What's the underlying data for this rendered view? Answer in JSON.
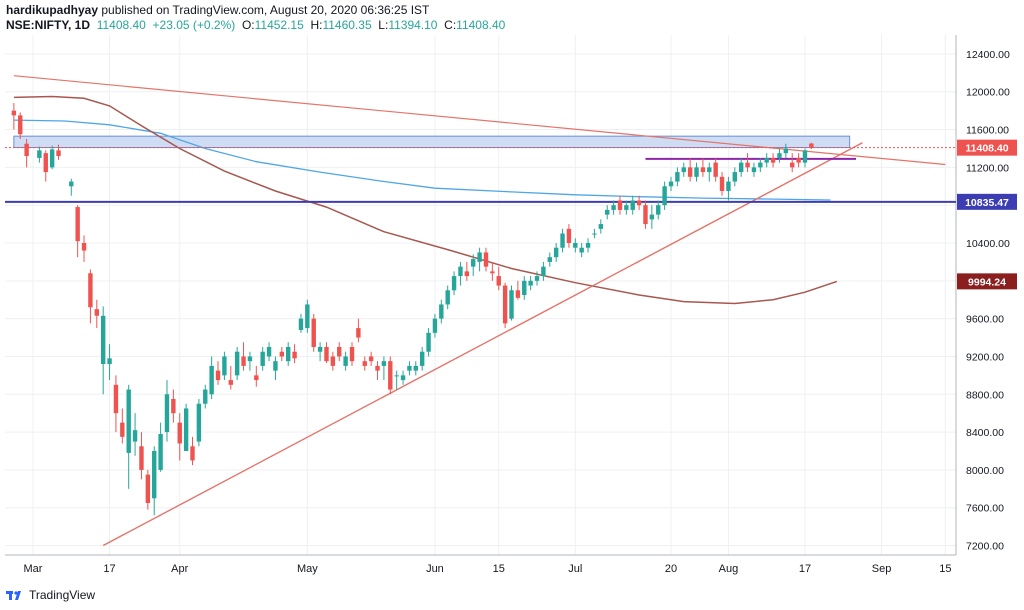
{
  "header": {
    "author": "hardikupadhyay",
    "published_text": "published on TradingView.com, August 20, 2020 06:36:25 IST",
    "symbol": "NSE:NIFTY, 1D",
    "last": "11408.40",
    "change": "+23.05 (+0.2%)",
    "o_label": "O:",
    "o_value": "11452.15",
    "h_label": "H:",
    "h_value": "11460.35",
    "l_label": "L:",
    "l_value": "11394.10",
    "c_label": "C:",
    "c_value": "11408.40"
  },
  "footer": {
    "brand": "TradingView"
  },
  "colors": {
    "up": "#26a69a",
    "down": "#ef5350",
    "grid": "#eef0f3",
    "trendline": "#e57368",
    "support_line": "#3d3db3",
    "resistance_line": "#8e24aa",
    "zone_fill": "#c6d6f2",
    "zone_border": "#6a8fd8",
    "ma_blue": "#4fa6e6",
    "ma_brown": "#a8574e",
    "badge_last": "#ef5350",
    "badge_support": "#3d3db3",
    "badge_ma": "#8b1e1e"
  },
  "chart_data": {
    "type": "candlestick",
    "title": "",
    "ylim": [
      7100,
      12600
    ],
    "y_ticks": [
      "12400.00",
      "12000.00",
      "11600.00",
      "11200.00",
      "10800.00",
      "10400.00",
      "10000.00",
      "9600.00",
      "9200.00",
      "8800.00",
      "8400.00",
      "8000.00",
      "7600.00",
      "7200.00"
    ],
    "y_tick_values": [
      12400,
      12000,
      11600,
      11200,
      10800,
      10400,
      10000,
      9600,
      9200,
      8800,
      8400,
      8000,
      7600,
      7200
    ],
    "x_ticks": [
      {
        "label": "Mar",
        "day": 0
      },
      {
        "label": "17",
        "day": 12
      },
      {
        "label": "Apr",
        "day": 23
      },
      {
        "label": "May",
        "day": 43
      },
      {
        "label": "Jun",
        "day": 63
      },
      {
        "label": "15",
        "day": 73
      },
      {
        "label": "Jul",
        "day": 85
      },
      {
        "label": "20",
        "day": 100
      },
      {
        "label": "Aug",
        "day": 109
      },
      {
        "label": "17",
        "day": 121
      },
      {
        "label": "Sep",
        "day": 133
      },
      {
        "label": "15",
        "day": 143
      }
    ],
    "price_badges": [
      {
        "label": "11408.40",
        "value": 11408.4,
        "color_key": "badge_last"
      },
      {
        "label": "10835.47",
        "value": 10835.47,
        "color_key": "badge_support"
      },
      {
        "label": "9994.24",
        "value": 9994.24,
        "color_key": "badge_ma"
      }
    ],
    "candles": [
      [
        -3,
        11800,
        11880,
        11600,
        11750
      ],
      [
        -2,
        11750,
        11780,
        11500,
        11550
      ],
      [
        -1,
        11450,
        11500,
        11200,
        11320
      ],
      [
        1,
        11300,
        11420,
        11250,
        11380
      ],
      [
        2,
        11350,
        11380,
        11050,
        11150
      ],
      [
        3,
        11200,
        11430,
        11180,
        11390
      ],
      [
        4,
        11380,
        11440,
        11280,
        11320
      ],
      [
        6,
        11000,
        11080,
        10900,
        11050
      ],
      [
        7,
        10780,
        10800,
        10250,
        10420
      ],
      [
        8,
        10400,
        10480,
        10200,
        10320
      ],
      [
        9,
        10080,
        10120,
        9550,
        9720
      ],
      [
        10,
        9700,
        9800,
        9500,
        9630
      ],
      [
        11,
        9120,
        9730,
        8800,
        9630
      ],
      [
        12,
        9120,
        9330,
        8950,
        9180
      ],
      [
        13,
        8900,
        9000,
        8400,
        8600
      ],
      [
        14,
        8500,
        8650,
        8280,
        8350
      ],
      [
        15,
        8180,
        8900,
        7800,
        8850
      ],
      [
        16,
        8300,
        8600,
        8150,
        8420
      ],
      [
        17,
        8250,
        8400,
        7900,
        8000
      ],
      [
        18,
        7950,
        8000,
        7580,
        7650
      ],
      [
        19,
        7700,
        8250,
        7520,
        8200
      ],
      [
        20,
        8000,
        8500,
        7980,
        8380
      ],
      [
        21,
        8400,
        8950,
        8300,
        8800
      ],
      [
        22,
        8750,
        8850,
        8500,
        8600
      ],
      [
        23,
        8500,
        8600,
        8100,
        8280
      ],
      [
        24,
        8200,
        8700,
        8200,
        8650
      ],
      [
        25,
        8250,
        8350,
        8050,
        8100
      ],
      [
        26,
        8300,
        8750,
        8250,
        8700
      ],
      [
        27,
        8700,
        8900,
        8650,
        8850
      ],
      [
        28,
        8800,
        9200,
        8750,
        9100
      ],
      [
        29,
        9050,
        9150,
        8900,
        8950
      ],
      [
        30,
        9000,
        9250,
        8950,
        9200
      ],
      [
        31,
        8950,
        9100,
        8850,
        8900
      ],
      [
        32,
        9000,
        9300,
        8950,
        9250
      ],
      [
        33,
        9200,
        9350,
        9050,
        9100
      ],
      [
        34,
        9150,
        9250,
        9050,
        9200
      ],
      [
        35,
        9000,
        9100,
        8880,
        8950
      ],
      [
        36,
        9100,
        9300,
        9050,
        9250
      ],
      [
        37,
        9200,
        9350,
        9150,
        9300
      ],
      [
        38,
        9050,
        9200,
        8950,
        9150
      ],
      [
        39,
        9250,
        9300,
        9150,
        9200
      ],
      [
        40,
        9150,
        9350,
        9100,
        9300
      ],
      [
        41,
        9250,
        9330,
        9130,
        9180
      ],
      [
        42,
        9480,
        9650,
        9450,
        9600
      ],
      [
        43,
        9500,
        9800,
        9450,
        9750
      ],
      [
        44,
        9600,
        9650,
        9250,
        9300
      ],
      [
        45,
        9250,
        9350,
        9150,
        9300
      ],
      [
        46,
        9300,
        9350,
        9130,
        9150
      ],
      [
        47,
        9200,
        9250,
        9050,
        9100
      ],
      [
        48,
        9300,
        9350,
        9150,
        9200
      ],
      [
        49,
        9100,
        9250,
        9050,
        9200
      ],
      [
        50,
        9300,
        9350,
        9100,
        9150
      ],
      [
        51,
        9500,
        9600,
        9350,
        9400
      ],
      [
        52,
        9150,
        9200,
        9050,
        9100
      ],
      [
        53,
        9200,
        9250,
        9100,
        9150
      ],
      [
        54,
        9100,
        9150,
        8950,
        9050
      ],
      [
        55,
        9100,
        9200,
        8950,
        9150
      ],
      [
        56,
        9150,
        9200,
        8800,
        8850
      ],
      [
        57,
        9000,
        9050,
        8850,
        9000
      ],
      [
        58,
        8950,
        9050,
        8900,
        9000
      ],
      [
        59,
        9050,
        9150,
        9000,
        9100
      ],
      [
        60,
        9050,
        9150,
        9000,
        9100
      ],
      [
        61,
        9100,
        9300,
        9050,
        9250
      ],
      [
        62,
        9250,
        9500,
        9200,
        9450
      ],
      [
        63,
        9450,
        9650,
        9400,
        9600
      ],
      [
        64,
        9600,
        9800,
        9550,
        9750
      ],
      [
        65,
        9750,
        9950,
        9700,
        9900
      ],
      [
        66,
        9900,
        10100,
        9850,
        10050
      ],
      [
        67,
        10050,
        10200,
        9950,
        10150
      ],
      [
        68,
        10100,
        10200,
        10000,
        10050
      ],
      [
        69,
        10150,
        10280,
        10050,
        10230
      ],
      [
        70,
        10200,
        10350,
        10100,
        10300
      ],
      [
        71,
        10300,
        10350,
        10100,
        10150
      ],
      [
        72,
        10100,
        10200,
        10000,
        10080
      ],
      [
        73,
        10050,
        10150,
        9900,
        9950
      ],
      [
        74,
        9950,
        9980,
        9500,
        9550
      ],
      [
        75,
        9600,
        9950,
        9580,
        9900
      ],
      [
        76,
        9900,
        10000,
        9800,
        9820
      ],
      [
        77,
        9850,
        10050,
        9800,
        10000
      ],
      [
        78,
        9950,
        10050,
        9900,
        10000
      ],
      [
        79,
        10000,
        10100,
        9950,
        10050
      ],
      [
        80,
        10050,
        10200,
        10000,
        10150
      ],
      [
        81,
        10200,
        10300,
        10150,
        10250
      ],
      [
        82,
        10250,
        10400,
        10200,
        10350
      ],
      [
        83,
        10350,
        10550,
        10300,
        10500
      ],
      [
        84,
        10550,
        10600,
        10350,
        10400
      ],
      [
        85,
        10350,
        10450,
        10300,
        10400
      ],
      [
        86,
        10300,
        10400,
        10250,
        10350
      ],
      [
        87,
        10350,
        10450,
        10300,
        10400
      ],
      [
        88,
        10500,
        10550,
        10450,
        10500
      ],
      [
        89,
        10550,
        10650,
        10500,
        10600
      ],
      [
        90,
        10700,
        10800,
        10650,
        10750
      ],
      [
        91,
        10750,
        10850,
        10700,
        10800
      ],
      [
        92,
        10850,
        10900,
        10700,
        10750
      ],
      [
        93,
        10750,
        10850,
        10700,
        10800
      ],
      [
        94,
        10750,
        10900,
        10700,
        10850
      ],
      [
        95,
        10850,
        10900,
        10750,
        10800
      ],
      [
        96,
        10800,
        10850,
        10550,
        10600
      ],
      [
        97,
        10650,
        10800,
        10550,
        10700
      ],
      [
        98,
        10700,
        10850,
        10650,
        10800
      ],
      [
        99,
        10800,
        11050,
        10750,
        11000
      ],
      [
        100,
        11000,
        11100,
        10950,
        11050
      ],
      [
        101,
        11050,
        11200,
        11000,
        11150
      ],
      [
        102,
        11150,
        11250,
        11100,
        11200
      ],
      [
        103,
        11200,
        11300,
        11050,
        11100
      ],
      [
        104,
        11100,
        11250,
        11050,
        11200
      ],
      [
        105,
        11200,
        11300,
        11100,
        11150
      ],
      [
        106,
        11150,
        11250,
        11050,
        11200
      ],
      [
        107,
        11250,
        11300,
        11050,
        11100
      ],
      [
        108,
        11100,
        11150,
        10900,
        10950
      ],
      [
        109,
        10950,
        11100,
        10850,
        11050
      ],
      [
        110,
        11050,
        11200,
        11000,
        11150
      ],
      [
        111,
        11150,
        11300,
        11100,
        11250
      ],
      [
        112,
        11250,
        11350,
        11150,
        11200
      ],
      [
        113,
        11150,
        11250,
        11100,
        11200
      ],
      [
        114,
        11200,
        11300,
        11150,
        11250
      ],
      [
        115,
        11250,
        11350,
        11200,
        11300
      ],
      [
        116,
        11300,
        11350,
        11200,
        11250
      ],
      [
        117,
        11300,
        11400,
        11250,
        11350
      ],
      [
        118,
        11350,
        11450,
        11300,
        11400
      ],
      [
        119,
        11250,
        11350,
        11150,
        11200
      ],
      [
        120,
        11300,
        11350,
        11200,
        11250
      ],
      [
        121,
        11250,
        11400,
        11200,
        11380
      ],
      [
        122,
        11452,
        11460,
        11394,
        11408
      ]
    ],
    "ma_blue": [
      [
        -3,
        11700
      ],
      [
        5,
        11690
      ],
      [
        12,
        11650
      ],
      [
        20,
        11560
      ],
      [
        27,
        11400
      ],
      [
        35,
        11260
      ],
      [
        45,
        11150
      ],
      [
        55,
        11050
      ],
      [
        63,
        10980
      ],
      [
        75,
        10940
      ],
      [
        85,
        10910
      ],
      [
        95,
        10890
      ],
      [
        105,
        10875
      ],
      [
        115,
        10865
      ],
      [
        125,
        10855
      ]
    ],
    "ma_brown": [
      [
        -3,
        11940
      ],
      [
        3,
        11950
      ],
      [
        8,
        11930
      ],
      [
        12,
        11850
      ],
      [
        17,
        11640
      ],
      [
        23,
        11400
      ],
      [
        30,
        11160
      ],
      [
        38,
        10950
      ],
      [
        46,
        10780
      ],
      [
        55,
        10520
      ],
      [
        65,
        10330
      ],
      [
        75,
        10130
      ],
      [
        85,
        9980
      ],
      [
        95,
        9850
      ],
      [
        102,
        9780
      ],
      [
        110,
        9760
      ],
      [
        116,
        9800
      ],
      [
        121,
        9880
      ],
      [
        126,
        9994
      ]
    ],
    "trendline_up": [
      [
        11,
        7200
      ],
      [
        130,
        11460
      ]
    ],
    "trendline_down": [
      [
        -3,
        12170
      ],
      [
        143,
        11230
      ]
    ],
    "support_level": 10835.47,
    "resistance_segment": {
      "x0": 96,
      "x1": 129,
      "y": 11290
    },
    "resistance_zone": {
      "x0": -3,
      "x1": 128,
      "y0": 11410,
      "y1": 11530
    },
    "last_price_level": 11408.4
  }
}
